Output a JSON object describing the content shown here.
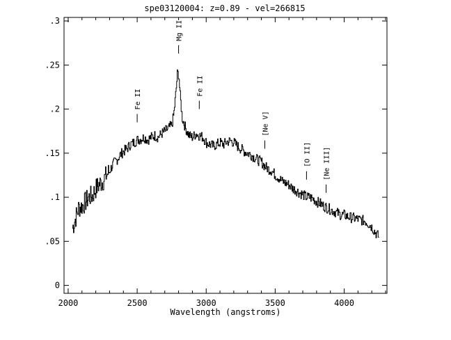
{
  "chart_data": {
    "type": "line",
    "title": "spe03120004: z=0.89 - vel=266815",
    "xlabel": "Wavelength (angstroms)",
    "ylabel": "",
    "xlim": [
      1970,
      4310
    ],
    "ylim": [
      -0.009,
      0.304
    ],
    "x_ticks": [
      {
        "value": 2000,
        "label": "2000"
      },
      {
        "value": 2500,
        "label": "2500"
      },
      {
        "value": 3000,
        "label": "3000"
      },
      {
        "value": 3500,
        "label": "3500"
      },
      {
        "value": 4000,
        "label": "4000"
      }
    ],
    "y_ticks": [
      {
        "value": 0,
        "label": "0"
      },
      {
        "value": 0.05,
        "label": ".05"
      },
      {
        "value": 0.1,
        "label": ".1"
      },
      {
        "value": 0.15,
        "label": ".15"
      },
      {
        "value": 0.2,
        "label": ".2"
      },
      {
        "value": 0.25,
        "label": ".25"
      },
      {
        "value": 0.3,
        "label": ".3"
      }
    ],
    "grid": false,
    "series": [
      {
        "x": [
          2030,
          2050,
          2075,
          2100,
          2125,
          2150,
          2175,
          2200,
          2225,
          2250,
          2275,
          2300,
          2325,
          2350,
          2375,
          2400,
          2425,
          2450,
          2475,
          2500,
          2525,
          2550,
          2575,
          2600,
          2625,
          2650,
          2675,
          2700,
          2725,
          2750,
          2765,
          2780,
          2790,
          2800,
          2810,
          2825,
          2850,
          2875,
          2900,
          2925,
          2950,
          2975,
          3000,
          3025,
          3050,
          3075,
          3100,
          3125,
          3150,
          3175,
          3200,
          3225,
          3250,
          3275,
          3300,
          3325,
          3350,
          3375,
          3400,
          3425,
          3450,
          3475,
          3500,
          3525,
          3550,
          3575,
          3600,
          3625,
          3650,
          3675,
          3700,
          3725,
          3750,
          3775,
          3800,
          3825,
          3850,
          3875,
          3900,
          3925,
          3950,
          3975,
          4000,
          4025,
          4050,
          4075,
          4100,
          4125,
          4150,
          4175,
          4200,
          4225,
          4250
        ],
        "y": [
          0.065,
          0.075,
          0.088,
          0.09,
          0.095,
          0.1,
          0.102,
          0.11,
          0.115,
          0.118,
          0.125,
          0.13,
          0.138,
          0.142,
          0.148,
          0.152,
          0.155,
          0.16,
          0.162,
          0.165,
          0.166,
          0.168,
          0.165,
          0.168,
          0.17,
          0.168,
          0.172,
          0.175,
          0.178,
          0.182,
          0.195,
          0.22,
          0.24,
          0.24,
          0.215,
          0.19,
          0.178,
          0.17,
          0.168,
          0.172,
          0.17,
          0.168,
          0.162,
          0.16,
          0.158,
          0.16,
          0.162,
          0.16,
          0.163,
          0.164,
          0.162,
          0.158,
          0.155,
          0.152,
          0.15,
          0.148,
          0.145,
          0.142,
          0.14,
          0.135,
          0.132,
          0.13,
          0.125,
          0.122,
          0.118,
          0.116,
          0.114,
          0.11,
          0.108,
          0.105,
          0.103,
          0.1,
          0.1,
          0.098,
          0.095,
          0.093,
          0.09,
          0.088,
          0.086,
          0.084,
          0.082,
          0.08,
          0.08,
          0.078,
          0.077,
          0.076,
          0.075,
          0.074,
          0.073,
          0.07,
          0.066,
          0.06,
          0.055
        ]
      }
    ],
    "annotations": [
      {
        "label": "Fe II",
        "x": 2500,
        "y": 0.185
      },
      {
        "label": "Mg II",
        "x": 2800,
        "y": 0.263
      },
      {
        "label": "Fe II",
        "x": 2950,
        "y": 0.2
      },
      {
        "label": "[Ne V]",
        "x": 3425,
        "y": 0.155
      },
      {
        "label": "[O II]",
        "x": 3727,
        "y": 0.12
      },
      {
        "label": "[Ne III]",
        "x": 3869,
        "y": 0.105
      }
    ]
  }
}
